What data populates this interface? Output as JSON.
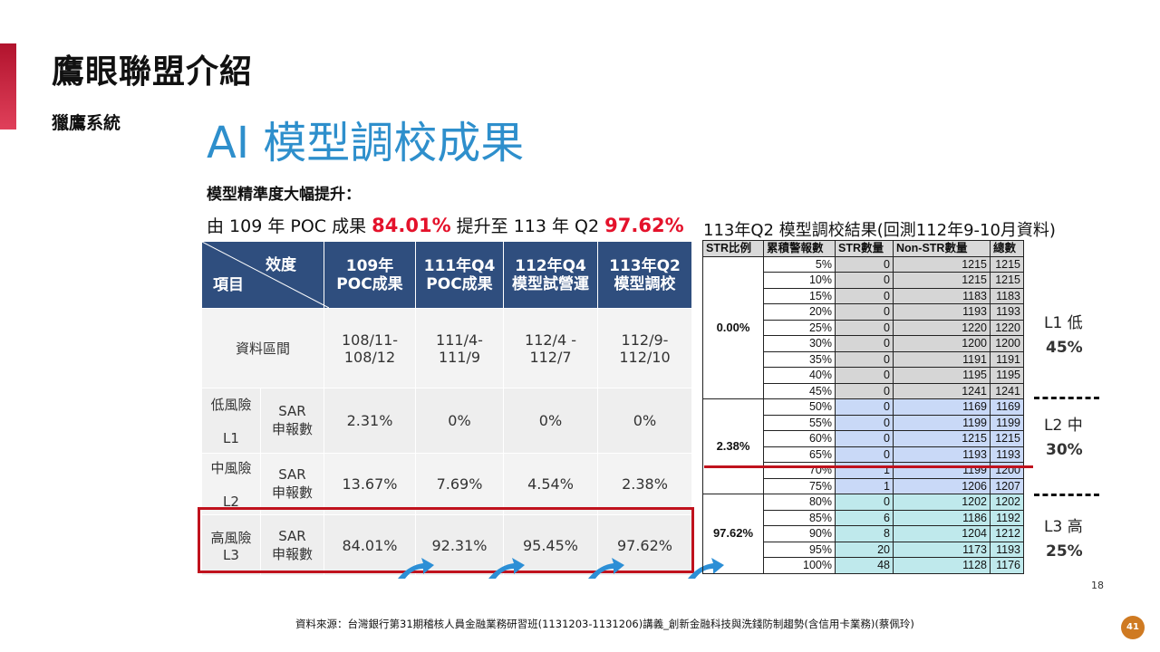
{
  "header": {
    "title": "鷹眼聯盟介紹",
    "subtitle": "獵鷹系統",
    "slide_title": "AI 模型調校成果"
  },
  "intro": {
    "line1": "模型精準度大幅提升：",
    "line2_pre": "由 109 年 POC 成果 ",
    "line2_hl1": "84.01%",
    "line2_mid": " 提升至 113 年 Q2 ",
    "line2_hl2": "97.62%"
  },
  "comparison": {
    "header_diag_top": "效度",
    "header_diag_bottom": "項目",
    "columns": [
      {
        "l1": "109年",
        "l2": "POC成果"
      },
      {
        "l1": "111年Q4",
        "l2": "POC成果"
      },
      {
        "l1": "112年Q4",
        "l2": "模型試營運"
      },
      {
        "l1": "113年Q2",
        "l2": "模型調校"
      }
    ],
    "period_label": "資料區間",
    "periods": [
      {
        "l1": "108/11-",
        "l2": "108/12"
      },
      {
        "l1": "111/4-",
        "l2": "111/9"
      },
      {
        "l1": "112/4 -",
        "l2": "112/7"
      },
      {
        "l1": "112/9-",
        "l2": "112/10"
      }
    ],
    "rows": [
      {
        "risk_l1": "低風險",
        "risk_l2": "L1",
        "metric_l1": "SAR",
        "metric_l2": "申報數",
        "values": [
          "2.31%",
          "0%",
          "0%",
          "0%"
        ]
      },
      {
        "risk_l1": "中風險",
        "risk_l2": "L2",
        "metric_l1": "SAR",
        "metric_l2": "申報數",
        "values": [
          "13.67%",
          "7.69%",
          "4.54%",
          "2.38%"
        ]
      },
      {
        "risk_l1": "高風險",
        "risk_l2": "L3",
        "metric_l1": "SAR",
        "metric_l2": "申報數",
        "values": [
          "84.01%",
          "92.31%",
          "95.45%",
          "97.62%"
        ]
      }
    ]
  },
  "results": {
    "title": "113年Q2 模型調校結果(回測112年9-10月資料)",
    "headers": [
      "STR比例",
      "累積警報數",
      "STR數量",
      "Non-STR數量",
      "總數"
    ],
    "groups": [
      {
        "ratio": "0.00%",
        "rows": [
          [
            "5%",
            "0",
            "1215",
            "1215"
          ],
          [
            "10%",
            "0",
            "1215",
            "1215"
          ],
          [
            "15%",
            "0",
            "1183",
            "1183"
          ],
          [
            "20%",
            "0",
            "1193",
            "1193"
          ],
          [
            "25%",
            "0",
            "1220",
            "1220"
          ],
          [
            "30%",
            "0",
            "1200",
            "1200"
          ],
          [
            "35%",
            "0",
            "1191",
            "1191"
          ],
          [
            "40%",
            "0",
            "1195",
            "1195"
          ],
          [
            "45%",
            "0",
            "1241",
            "1241"
          ]
        ]
      },
      {
        "ratio": "2.38%",
        "rows": [
          [
            "50%",
            "0",
            "1169",
            "1169"
          ],
          [
            "55%",
            "0",
            "1199",
            "1199"
          ],
          [
            "60%",
            "0",
            "1215",
            "1215"
          ],
          [
            "65%",
            "0",
            "1193",
            "1193"
          ],
          [
            "70%",
            "1",
            "1199",
            "1200"
          ],
          [
            "75%",
            "1",
            "1206",
            "1207"
          ]
        ]
      },
      {
        "ratio": "97.62%",
        "rows": [
          [
            "80%",
            "0",
            "1202",
            "1202"
          ],
          [
            "85%",
            "6",
            "1186",
            "1192"
          ],
          [
            "90%",
            "8",
            "1204",
            "1212"
          ],
          [
            "95%",
            "20",
            "1173",
            "1193"
          ],
          [
            "100%",
            "48",
            "1128",
            "1176"
          ]
        ]
      }
    ],
    "levels": [
      {
        "label": "L1 低",
        "pct": "45%"
      },
      {
        "label": "L2 中",
        "pct": "30%"
      },
      {
        "label": "L3 高",
        "pct": "25%"
      }
    ]
  },
  "footer": {
    "small_page": "18",
    "source": "資料來源：台灣銀行第31期稽核人員金融業務研習班(1131203-1131206)講義_創新金融科技與洗錢防制趨勢(含信用卡業務)(蔡佩玲)",
    "page_number": "41"
  }
}
